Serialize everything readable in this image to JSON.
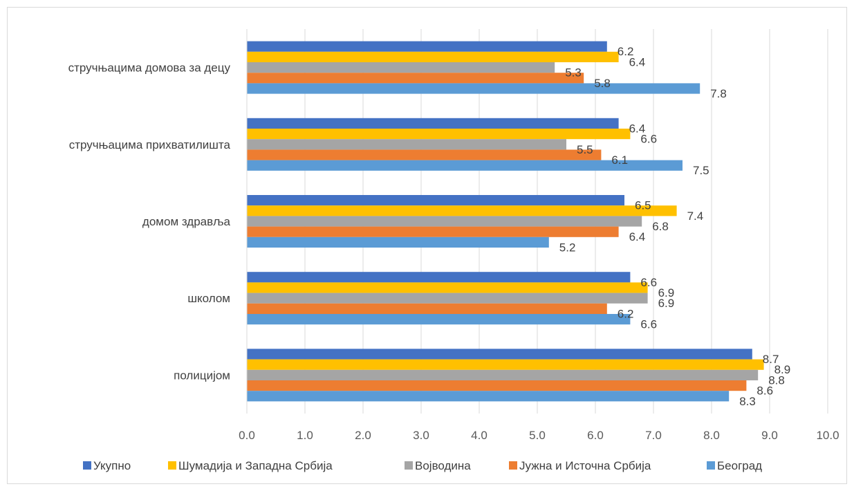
{
  "chart_data": {
    "type": "bar",
    "orientation": "horizontal",
    "title": "",
    "xlabel": "",
    "ylabel": "",
    "categories": [
      "стручњацима домова за децу",
      "стручњацима прихватилишта",
      "домом здравља",
      "школом",
      "полицијом"
    ],
    "series": [
      {
        "name": "Укупно",
        "color": "#4472c4",
        "values": [
          6.2,
          6.4,
          6.5,
          6.6,
          8.7
        ]
      },
      {
        "name": "Шумадија и Западна Србија",
        "color": "#ffc000",
        "values": [
          6.4,
          6.6,
          7.4,
          6.9,
          8.9
        ]
      },
      {
        "name": "Војводина",
        "color": "#a5a5a5",
        "values": [
          5.3,
          5.5,
          6.8,
          6.9,
          8.8
        ]
      },
      {
        "name": "Јужна и Источна Србија",
        "color": "#ed7d31",
        "values": [
          5.8,
          6.1,
          6.4,
          6.2,
          8.6
        ]
      },
      {
        "name": "Београд",
        "color": "#5b9bd5",
        "values": [
          7.8,
          7.5,
          5.2,
          6.6,
          8.3
        ]
      }
    ],
    "xlim": [
      0,
      10
    ],
    "x_ticks": [
      "0.0",
      "1.0",
      "2.0",
      "3.0",
      "4.0",
      "5.0",
      "6.0",
      "7.0",
      "8.0",
      "9.0",
      "10.0"
    ],
    "grid": "vertical",
    "legend_position": "bottom"
  }
}
